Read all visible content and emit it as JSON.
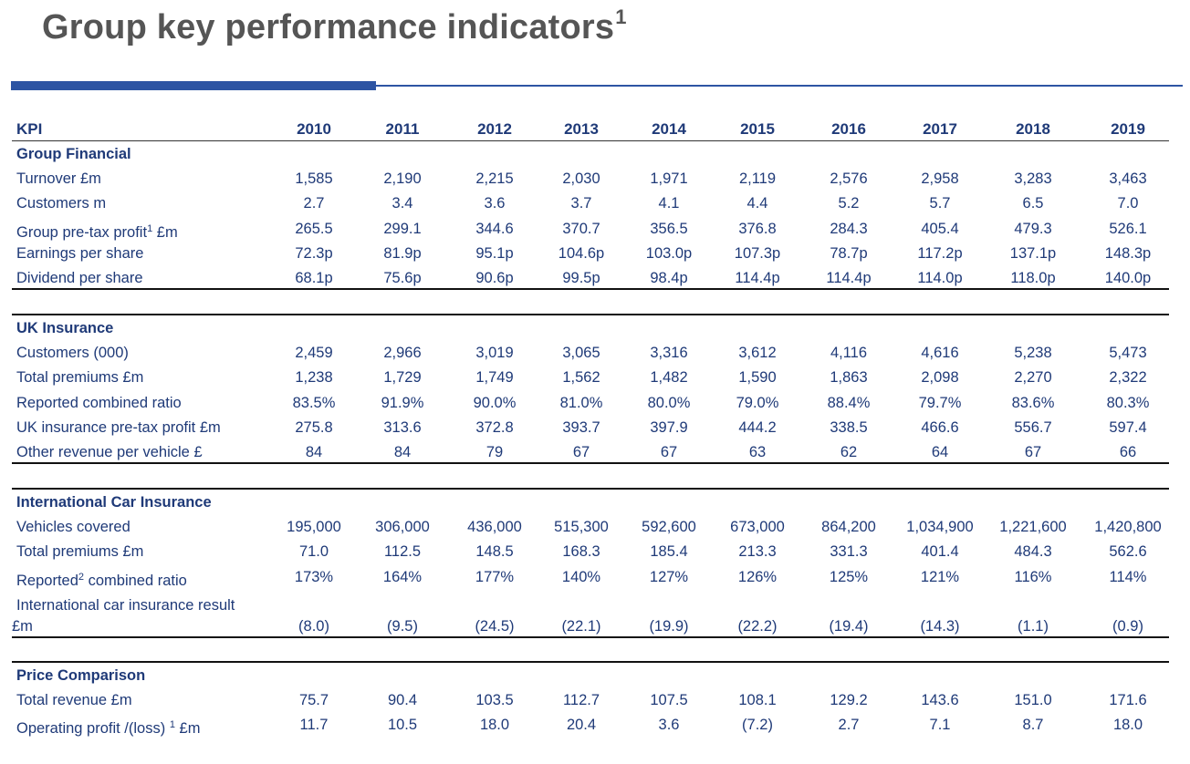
{
  "title": {
    "text": "Group key performance indicators",
    "superscript": "1"
  },
  "header": {
    "label": "KPI",
    "years": [
      "2010",
      "2011",
      "2012",
      "2013",
      "2014",
      "2015",
      "2016",
      "2017",
      "2018",
      "2019"
    ]
  },
  "sections": [
    {
      "name": "Group Financial",
      "rows": [
        {
          "label": "Turnover £m",
          "values": [
            "1,585",
            "2,190",
            "2,215",
            "2,030",
            "1,971",
            "2,119",
            "2,576",
            "2,958",
            "3,283",
            "3,463"
          ]
        },
        {
          "label": "Customers m",
          "values": [
            "2.7",
            "3.4",
            "3.6",
            "3.7",
            "4.1",
            "4.4",
            "5.2",
            "5.7",
            "6.5",
            "7.0"
          ]
        },
        {
          "label": "Group pre-tax profit",
          "sup": "1",
          "label_suffix": " £m",
          "values": [
            "265.5",
            "299.1",
            "344.6",
            "370.7",
            "356.5",
            "376.8",
            "284.3",
            "405.4",
            "479.3",
            "526.1"
          ]
        },
        {
          "label": "Earnings per share",
          "values": [
            "72.3p",
            "81.9p",
            "95.1p",
            "104.6p",
            "103.0p",
            "107.3p",
            "78.7p",
            "117.2p",
            "137.1p",
            "148.3p"
          ]
        },
        {
          "label": "Dividend per share",
          "values": [
            "68.1p",
            "75.6p",
            "90.6p",
            "99.5p",
            "98.4p",
            "114.4p",
            "114.4p",
            "114.0p",
            "118.0p",
            "140.0p"
          ]
        }
      ]
    },
    {
      "name": "UK Insurance",
      "rows": [
        {
          "label": "Customers (000)",
          "values": [
            "2,459",
            "2,966",
            "3,019",
            "3,065",
            "3,316",
            "3,612",
            "4,116",
            "4,616",
            "5,238",
            "5,473"
          ]
        },
        {
          "label": "Total premiums £m",
          "values": [
            "1,238",
            "1,729",
            "1,749",
            "1,562",
            "1,482",
            "1,590",
            "1,863",
            "2,098",
            "2,270",
            "2,322"
          ]
        },
        {
          "label": "Reported combined ratio",
          "values": [
            "83.5%",
            "91.9%",
            "90.0%",
            "81.0%",
            "80.0%",
            "79.0%",
            "88.4%",
            "79.7%",
            "83.6%",
            "80.3%"
          ]
        },
        {
          "label": "UK insurance pre-tax profit £m",
          "values": [
            "275.8",
            "313.6",
            "372.8",
            "393.7",
            "397.9",
            "444.2",
            "338.5",
            "466.6",
            "556.7",
            "597.4"
          ]
        },
        {
          "label": "Other revenue per vehicle £",
          "values": [
            "84",
            "84",
            "79",
            "67",
            "67",
            "63",
            "62",
            "64",
            "67",
            "66"
          ]
        }
      ]
    },
    {
      "name": "International Car Insurance",
      "rows": [
        {
          "label": "Vehicles covered",
          "values": [
            "195,000",
            "306,000",
            "436,000",
            "515,300",
            "592,600",
            "673,000",
            "864,200",
            "1,034,900",
            "1,221,600",
            "1,420,800"
          ]
        },
        {
          "label": "Total premiums £m",
          "values": [
            "71.0",
            "112.5",
            "148.5",
            "168.3",
            "185.4",
            "213.3",
            "331.3",
            "401.4",
            "484.3",
            "562.6"
          ]
        },
        {
          "label": "Reported",
          "sup": "2",
          "label_suffix": " combined ratio",
          "values": [
            "173%",
            "164%",
            "177%",
            "140%",
            "127%",
            "126%",
            "125%",
            "121%",
            "116%",
            "114%"
          ]
        },
        {
          "label": "International car insurance result",
          "label_line2": "£m",
          "values": [
            "(8.0)",
            "(9.5)",
            "(24.5)",
            "(22.1)",
            "(19.9)",
            "(22.2)",
            "(19.4)",
            "(14.3)",
            "(1.1)",
            "(0.9)"
          ]
        }
      ]
    },
    {
      "name": "Price Comparison",
      "rows": [
        {
          "label": "Total revenue £m",
          "values": [
            "75.7",
            "90.4",
            "103.5",
            "112.7",
            "107.5",
            "108.1",
            "129.2",
            "143.6",
            "151.0",
            "171.6"
          ]
        },
        {
          "label": "Operating profit /(loss) ",
          "sup": "1",
          "label_suffix": " £m",
          "values": [
            "11.7",
            "10.5",
            "18.0",
            "20.4",
            "3.6",
            "(7.2)",
            "2.7",
            "7.1",
            "8.7",
            "18.0"
          ]
        }
      ]
    }
  ]
}
